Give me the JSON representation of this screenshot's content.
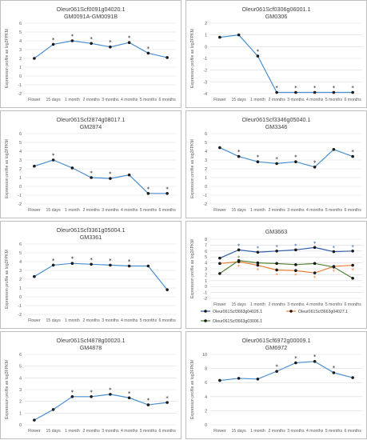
{
  "chart_data": [
    {
      "type": "line",
      "title": "Oleur061Scf0091g04020.1",
      "subtitle": "GM0091A-GM0091B",
      "ylabel": "Expression profile as log2FPKM",
      "categories": [
        "Flower",
        "15 days",
        "1 month",
        "2 months",
        "3 months",
        "4 months",
        "5 months",
        "6 months"
      ],
      "ylim": [
        -2,
        6
      ],
      "yticks": [
        -2,
        -1,
        0,
        1,
        2,
        3,
        4,
        5,
        6
      ],
      "series": [
        {
          "values": [
            2.0,
            3.6,
            4.0,
            3.7,
            3.3,
            3.8,
            2.6,
            2.1
          ],
          "color": "#4a8fd0",
          "stars": [
            false,
            true,
            true,
            true,
            true,
            true,
            true,
            false
          ],
          "star_offset": 0.55
        }
      ]
    },
    {
      "type": "line",
      "title": "Oleur061Scf0306g06001.1",
      "subtitle": "GM0306",
      "ylabel": "Expression profile as log2FPKM",
      "categories": [
        "Flower",
        "15 days",
        "1 month",
        "2 months",
        "3 months",
        "4 months",
        "5 months",
        "6 months"
      ],
      "ylim": [
        -4,
        2
      ],
      "yticks": [
        -4,
        -3,
        -2,
        -1,
        0,
        1,
        2
      ],
      "series": [
        {
          "values": [
            0.8,
            1.0,
            -0.8,
            -3.9,
            -3.9,
            -3.9,
            -3.9,
            -3.9
          ],
          "color": "#4a8fd0",
          "stars": [
            false,
            false,
            true,
            true,
            true,
            true,
            true,
            true
          ],
          "star_offset": 0.4
        }
      ]
    },
    {
      "type": "line",
      "title": "Oleur061Scf2874g08017.1",
      "subtitle": "GM2874",
      "ylabel": "Expression profile as log2FPKM",
      "categories": [
        "Flower",
        "15 days",
        "1 month",
        "2 months",
        "3 months",
        "4 months",
        "5 months",
        "6 months"
      ],
      "ylim": [
        -2,
        6
      ],
      "yticks": [
        -2,
        -1,
        0,
        1,
        2,
        3,
        4,
        5,
        6
      ],
      "series": [
        {
          "values": [
            2.3,
            3.0,
            2.1,
            1.0,
            0.9,
            1.3,
            -0.8,
            -0.8
          ],
          "color": "#4a8fd0",
          "stars": [
            false,
            true,
            false,
            true,
            true,
            false,
            true,
            true
          ],
          "star_offset": 0.55
        }
      ]
    },
    {
      "type": "line",
      "title": "Oleur061Scf3346g05040.1",
      "subtitle": "GM3346",
      "ylabel": "Expression profile as log2FPKM",
      "categories": [
        "Flower",
        "15 days",
        "1 month",
        "2 months",
        "3 months",
        "4 months",
        "5 months",
        "6 months"
      ],
      "ylim": [
        -2,
        6
      ],
      "yticks": [
        -2,
        -1,
        0,
        1,
        2,
        3,
        4,
        5,
        6
      ],
      "series": [
        {
          "values": [
            4.4,
            3.4,
            2.8,
            2.6,
            2.8,
            2.2,
            4.2,
            3.4
          ],
          "color": "#4a8fd0",
          "stars": [
            false,
            true,
            true,
            true,
            true,
            true,
            false,
            true
          ],
          "star_offset": 0.55
        }
      ]
    },
    {
      "type": "line",
      "title": "Oleur061Scf3361g05004.1",
      "subtitle": "GM3361",
      "ylabel": "Expression profile as log2FPKM",
      "categories": [
        "Flower",
        "15 days",
        "1 month",
        "2 months",
        "3 months",
        "4 months",
        "5 months",
        "6 months"
      ],
      "ylim": [
        -2,
        6
      ],
      "yticks": [
        -2,
        -1,
        0,
        1,
        2,
        3,
        4,
        5,
        6
      ],
      "series": [
        {
          "values": [
            2.3,
            3.6,
            3.8,
            3.7,
            3.6,
            3.5,
            3.5,
            0.8
          ],
          "color": "#4a8fd0",
          "stars": [
            false,
            true,
            true,
            true,
            true,
            true,
            false,
            false
          ],
          "star_offset": 0.55
        }
      ]
    },
    {
      "type": "line",
      "title": "GM3663",
      "subtitle": "",
      "ylabel": "Expression profile as log2FPKM",
      "categories": [
        "Flower",
        "15 days",
        "1 month",
        "2 months",
        "3 months",
        "4 months",
        "5 months",
        "6 months"
      ],
      "ylim": [
        -2,
        8
      ],
      "yticks": [
        -2,
        -1,
        0,
        1,
        2,
        3,
        4,
        5,
        6,
        7,
        8
      ],
      "legend": "bottom",
      "series": [
        {
          "name": "Oleur061Scf3663g04026.1",
          "values": [
            4.8,
            6.2,
            5.8,
            6.0,
            6.2,
            6.6,
            5.9,
            6.0
          ],
          "color": "#2e5aa8",
          "stars": [
            false,
            true,
            true,
            true,
            true,
            true,
            true,
            true
          ],
          "star_offset": 0.7
        },
        {
          "name": "Oleur061Scf3663g04027.1",
          "values": [
            3.9,
            4.2,
            3.6,
            2.8,
            2.7,
            2.3,
            3.4,
            3.6
          ],
          "color": "#ed7d31",
          "stars": [
            false,
            true,
            true,
            true,
            true,
            true,
            true,
            true
          ],
          "star_offset": -0.8
        },
        {
          "name": "Oleur061Scf3663g03006.1",
          "values": [
            2.2,
            4.4,
            4.0,
            3.9,
            3.7,
            3.9,
            3.3,
            1.4
          ],
          "color": "#548235",
          "stars": [
            false,
            true,
            false,
            false,
            false,
            false,
            false,
            false
          ],
          "star_offset": 0.5
        }
      ]
    },
    {
      "type": "line",
      "title": "Oleur061Scf4878g00020.1",
      "subtitle": "GM4878",
      "ylabel": "Expression profile as log2FPKM",
      "categories": [
        "Flower",
        "15 days",
        "1 month",
        "2 months",
        "3 months",
        "4 months",
        "5 months",
        "6 months"
      ],
      "ylim": [
        0,
        6
      ],
      "yticks": [
        0,
        1,
        2,
        3,
        4,
        5,
        6
      ],
      "series": [
        {
          "values": [
            0.4,
            1.3,
            2.4,
            2.4,
            2.6,
            2.3,
            1.7,
            1.9
          ],
          "color": "#4a8fd0",
          "stars": [
            false,
            false,
            true,
            true,
            true,
            true,
            true,
            true
          ],
          "star_offset": 0.4
        }
      ]
    },
    {
      "type": "line",
      "title": "Oleur061Scf6972g00009.1",
      "subtitle": "GM6972",
      "ylabel": "Expression profile as log2FPKM",
      "categories": [
        "Flower",
        "15 days",
        "1 month",
        "2 months",
        "3 months",
        "4 months",
        "5 months",
        "6 months"
      ],
      "ylim": [
        0,
        10
      ],
      "yticks": [
        0,
        2,
        4,
        6,
        8,
        10
      ],
      "series": [
        {
          "values": [
            6.3,
            6.6,
            6.5,
            7.6,
            8.8,
            9.0,
            7.4,
            6.7
          ],
          "color": "#4a8fd0",
          "stars": [
            false,
            false,
            false,
            true,
            true,
            true,
            true,
            false
          ],
          "star_offset": 0.7
        }
      ]
    }
  ]
}
